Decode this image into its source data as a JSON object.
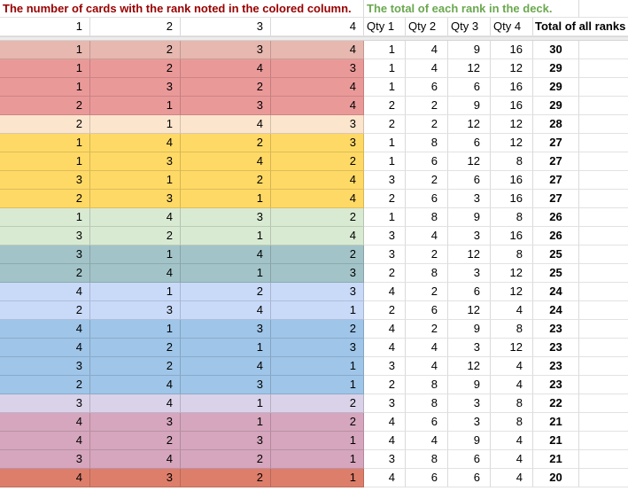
{
  "titles": {
    "left": "The number of cards with the rank noted in the colored column.",
    "right": "The total of each rank in the deck."
  },
  "colors": {
    "left_title": "#990000",
    "right_title": "#6aa84f",
    "gridline_white_area": "#dadada",
    "frozen_divider": "#ececec"
  },
  "column_headers": {
    "rank_headers": [
      "1",
      "2",
      "3",
      "4"
    ],
    "qty_headers": [
      "Qty 1",
      "Qty 2",
      "Qty 3",
      "Qty 4"
    ],
    "total_header": "Total of all ranks"
  },
  "rows": [
    {
      "ranks": [
        1,
        2,
        3,
        4
      ],
      "qtys": [
        1,
        4,
        9,
        16
      ],
      "total": 30,
      "color": "#e6b8af"
    },
    {
      "ranks": [
        1,
        2,
        4,
        3
      ],
      "qtys": [
        1,
        4,
        12,
        12
      ],
      "total": 29,
      "color": "#ea9999"
    },
    {
      "ranks": [
        1,
        3,
        2,
        4
      ],
      "qtys": [
        1,
        6,
        6,
        16
      ],
      "total": 29,
      "color": "#ea9999"
    },
    {
      "ranks": [
        2,
        1,
        3,
        4
      ],
      "qtys": [
        2,
        2,
        9,
        16
      ],
      "total": 29,
      "color": "#ea9999"
    },
    {
      "ranks": [
        2,
        1,
        4,
        3
      ],
      "qtys": [
        2,
        2,
        12,
        12
      ],
      "total": 28,
      "color": "#fce5cd"
    },
    {
      "ranks": [
        1,
        4,
        2,
        3
      ],
      "qtys": [
        1,
        8,
        6,
        12
      ],
      "total": 27,
      "color": "#ffd966"
    },
    {
      "ranks": [
        1,
        3,
        4,
        2
      ],
      "qtys": [
        1,
        6,
        12,
        8
      ],
      "total": 27,
      "color": "#ffd966"
    },
    {
      "ranks": [
        3,
        1,
        2,
        4
      ],
      "qtys": [
        3,
        2,
        6,
        16
      ],
      "total": 27,
      "color": "#ffd966"
    },
    {
      "ranks": [
        2,
        3,
        1,
        4
      ],
      "qtys": [
        2,
        6,
        3,
        16
      ],
      "total": 27,
      "color": "#ffd966"
    },
    {
      "ranks": [
        1,
        4,
        3,
        2
      ],
      "qtys": [
        1,
        8,
        9,
        8
      ],
      "total": 26,
      "color": "#d9ead3"
    },
    {
      "ranks": [
        3,
        2,
        1,
        4
      ],
      "qtys": [
        3,
        4,
        3,
        16
      ],
      "total": 26,
      "color": "#d9ead3"
    },
    {
      "ranks": [
        3,
        1,
        4,
        2
      ],
      "qtys": [
        3,
        2,
        12,
        8
      ],
      "total": 25,
      "color": "#a2c4c9"
    },
    {
      "ranks": [
        2,
        4,
        1,
        3
      ],
      "qtys": [
        2,
        8,
        3,
        12
      ],
      "total": 25,
      "color": "#a2c4c9"
    },
    {
      "ranks": [
        4,
        1,
        2,
        3
      ],
      "qtys": [
        4,
        2,
        6,
        12
      ],
      "total": 24,
      "color": "#c9daf8"
    },
    {
      "ranks": [
        2,
        3,
        4,
        1
      ],
      "qtys": [
        2,
        6,
        12,
        4
      ],
      "total": 24,
      "color": "#c9daf8"
    },
    {
      "ranks": [
        4,
        1,
        3,
        2
      ],
      "qtys": [
        4,
        2,
        9,
        8
      ],
      "total": 23,
      "color": "#9fc5e8"
    },
    {
      "ranks": [
        4,
        2,
        1,
        3
      ],
      "qtys": [
        4,
        4,
        3,
        12
      ],
      "total": 23,
      "color": "#9fc5e8"
    },
    {
      "ranks": [
        3,
        2,
        4,
        1
      ],
      "qtys": [
        3,
        4,
        12,
        4
      ],
      "total": 23,
      "color": "#9fc5e8"
    },
    {
      "ranks": [
        2,
        4,
        3,
        1
      ],
      "qtys": [
        2,
        8,
        9,
        4
      ],
      "total": 23,
      "color": "#9fc5e8"
    },
    {
      "ranks": [
        3,
        4,
        1,
        2
      ],
      "qtys": [
        3,
        8,
        3,
        8
      ],
      "total": 22,
      "color": "#d9d2e9"
    },
    {
      "ranks": [
        4,
        3,
        1,
        2
      ],
      "qtys": [
        4,
        6,
        3,
        8
      ],
      "total": 21,
      "color": "#d5a6bd"
    },
    {
      "ranks": [
        4,
        2,
        3,
        1
      ],
      "qtys": [
        4,
        4,
        9,
        4
      ],
      "total": 21,
      "color": "#d5a6bd"
    },
    {
      "ranks": [
        3,
        4,
        2,
        1
      ],
      "qtys": [
        3,
        8,
        6,
        4
      ],
      "total": 21,
      "color": "#d5a6bd"
    },
    {
      "ranks": [
        4,
        3,
        2,
        1
      ],
      "qtys": [
        4,
        6,
        6,
        4
      ],
      "total": 20,
      "color": "#dd7e6b"
    }
  ]
}
